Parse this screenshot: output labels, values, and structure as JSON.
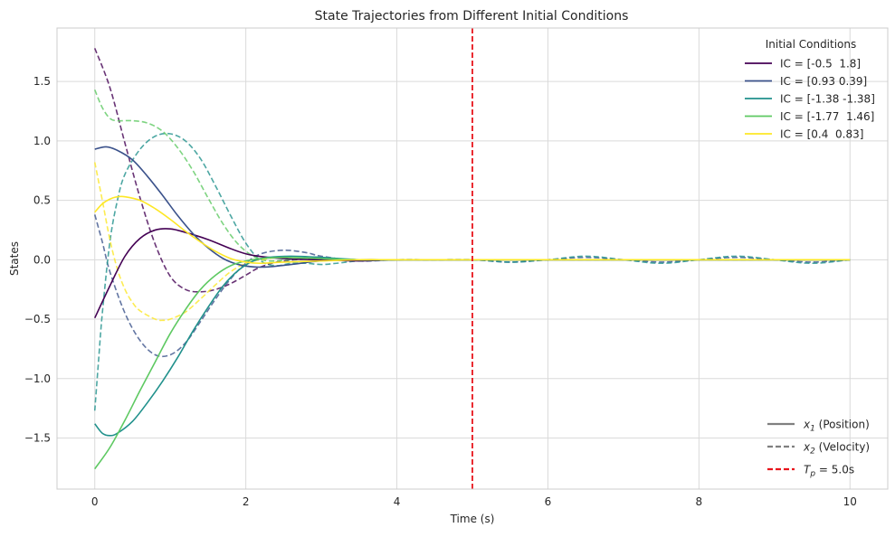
{
  "chart_data": {
    "type": "line",
    "title": "State Trajectories from Different Initial Conditions",
    "xlabel": "Time (s)",
    "ylabel": "States",
    "xlim": [
      -0.5,
      10.5
    ],
    "ylim": [
      -1.93,
      1.95
    ],
    "x_ticks": [
      0,
      2,
      4,
      6,
      8,
      10
    ],
    "x_tick_labels": [
      "0",
      "2",
      "4",
      "6",
      "8",
      "10"
    ],
    "y_ticks": [
      -1.5,
      -1.0,
      -0.5,
      0.0,
      0.5,
      1.0,
      1.5
    ],
    "y_tick_labels": [
      "−1.5",
      "−1.0",
      "−0.5",
      "0.0",
      "0.5",
      "1.0",
      "1.5"
    ],
    "grid": true,
    "vline": {
      "x": 5.0,
      "color": "#e8141c"
    },
    "legend_ic": {
      "title": "Initial Conditions",
      "placement": "top-right",
      "entries": [
        {
          "label": "IC = [-0.5  1.8]",
          "color": "#440154"
        },
        {
          "label": "IC = [0.93 0.39]",
          "color": "#3b528b"
        },
        {
          "label": "IC = [-1.38 -1.38]",
          "color": "#21918c"
        },
        {
          "label": "IC = [-1.77  1.46]",
          "color": "#5ec962"
        },
        {
          "label": "IC = [0.4  0.83]",
          "color": "#fde725"
        }
      ]
    },
    "legend_style": {
      "placement": "bottom-right",
      "entries": [
        {
          "prefix": "x",
          "sub": "1",
          "label": " (Position)",
          "style": "solid",
          "color": "#808080"
        },
        {
          "prefix": "x",
          "sub": "2",
          "label": " (Velocity)",
          "style": "dashed",
          "color": "#808080"
        },
        {
          "prefix": "T",
          "sub": "p",
          "label": " = 5.0s",
          "style": "dashed",
          "color": "#e8141c"
        }
      ]
    },
    "series": [
      {
        "name": "IC = [-0.5  1.8] x1",
        "state": "x1",
        "color": "#440154",
        "x": [
          0,
          0.2,
          0.4,
          0.6,
          0.8,
          1.0,
          1.2,
          1.5,
          2.0,
          2.5,
          3.0,
          3.5,
          4.0,
          5.0,
          6.0,
          7.0,
          8.0,
          9.0,
          10.0
        ],
        "y": [
          -0.49,
          -0.22,
          0.03,
          0.18,
          0.25,
          0.26,
          0.23,
          0.17,
          0.05,
          0.01,
          0.0,
          -0.01,
          0.0,
          0.0,
          0.0,
          0.0,
          0.0,
          0.0,
          0.0
        ]
      },
      {
        "name": "IC = [-0.5  1.8] x2",
        "state": "x2",
        "color": "#440154",
        "x": [
          0,
          0.2,
          0.4,
          0.6,
          0.8,
          1.0,
          1.2,
          1.4,
          1.6,
          1.8,
          2.0,
          2.2,
          2.5,
          3.0,
          3.5,
          4.0,
          5.0,
          6.0,
          7.0,
          8.0,
          9.0,
          10.0
        ],
        "y": [
          1.78,
          1.45,
          0.98,
          0.52,
          0.13,
          -0.14,
          -0.25,
          -0.27,
          -0.25,
          -0.2,
          -0.13,
          -0.06,
          -0.01,
          0.01,
          0.0,
          0.0,
          0.0,
          0.0,
          0.0,
          0.0,
          0.0,
          0.0
        ]
      },
      {
        "name": "IC = [0.93 0.39] x1",
        "state": "x1",
        "color": "#3b528b",
        "x": [
          0,
          0.15,
          0.3,
          0.5,
          0.7,
          0.9,
          1.1,
          1.3,
          1.5,
          1.7,
          1.9,
          2.1,
          2.3,
          2.6,
          3.0,
          3.5,
          4.0,
          5.0,
          6.0,
          7.0,
          8.0,
          9.0,
          10.0
        ],
        "y": [
          0.93,
          0.95,
          0.92,
          0.84,
          0.7,
          0.54,
          0.37,
          0.22,
          0.1,
          0.01,
          -0.04,
          -0.06,
          -0.06,
          -0.04,
          -0.01,
          0.0,
          0.0,
          0.0,
          0.0,
          0.0,
          0.0,
          0.0,
          0.0
        ]
      },
      {
        "name": "IC = [0.93 0.39] x2",
        "state": "x2",
        "color": "#3b528b",
        "x": [
          0,
          0.1,
          0.2,
          0.4,
          0.6,
          0.8,
          1.0,
          1.2,
          1.4,
          1.6,
          1.8,
          2.0,
          2.2,
          2.5,
          2.8,
          3.0,
          3.5,
          4.0,
          4.5,
          5.0,
          5.5,
          6.0,
          6.5,
          7.0,
          7.5,
          8.0,
          8.5,
          9.0,
          9.5,
          10.0
        ],
        "y": [
          0.38,
          0.15,
          -0.1,
          -0.45,
          -0.68,
          -0.8,
          -0.8,
          -0.7,
          -0.52,
          -0.33,
          -0.16,
          -0.03,
          0.05,
          0.08,
          0.06,
          0.03,
          -0.01,
          0.0,
          0.0,
          0.0,
          -0.02,
          0.0,
          0.02,
          0.0,
          -0.02,
          0.0,
          0.02,
          0.0,
          -0.02,
          0.0
        ]
      },
      {
        "name": "IC = [-1.38 -1.38] x1",
        "state": "x1",
        "color": "#21918c",
        "x": [
          0,
          0.1,
          0.2,
          0.3,
          0.5,
          0.7,
          0.9,
          1.1,
          1.3,
          1.5,
          1.7,
          1.9,
          2.1,
          2.3,
          2.6,
          3.0,
          3.5,
          4.0,
          5.0,
          6.0,
          7.0,
          8.0,
          9.0,
          10.0
        ],
        "y": [
          -1.38,
          -1.46,
          -1.48,
          -1.46,
          -1.36,
          -1.2,
          -1.02,
          -0.82,
          -0.6,
          -0.4,
          -0.22,
          -0.09,
          -0.01,
          0.02,
          0.03,
          0.02,
          0.0,
          0.0,
          0.0,
          0.0,
          0.0,
          0.0,
          0.0,
          0.0
        ]
      },
      {
        "name": "IC = [-1.38 -1.38] x2",
        "state": "x2",
        "color": "#21918c",
        "x": [
          0,
          0.05,
          0.1,
          0.2,
          0.3,
          0.4,
          0.6,
          0.8,
          1.0,
          1.2,
          1.4,
          1.6,
          1.8,
          2.0,
          2.2,
          2.4,
          2.6,
          2.8,
          3.0,
          3.2,
          3.5,
          4.0,
          4.5,
          5.0,
          5.5,
          6.0,
          6.5,
          7.0,
          7.5,
          8.0,
          8.5,
          9.0,
          9.5,
          10.0
        ],
        "y": [
          -1.27,
          -0.85,
          -0.45,
          0.15,
          0.5,
          0.72,
          0.93,
          1.04,
          1.06,
          1.0,
          0.85,
          0.62,
          0.37,
          0.14,
          -0.01,
          -0.05,
          -0.03,
          -0.03,
          -0.04,
          -0.03,
          -0.01,
          0.0,
          0.0,
          0.0,
          -0.02,
          0.0,
          0.03,
          0.0,
          -0.03,
          0.0,
          0.03,
          0.0,
          -0.03,
          0.0
        ]
      },
      {
        "name": "IC = [-1.77  1.46] x1",
        "state": "x1",
        "color": "#5ec962",
        "x": [
          0,
          0.2,
          0.4,
          0.6,
          0.8,
          1.0,
          1.2,
          1.4,
          1.6,
          1.8,
          2.0,
          2.2,
          2.5,
          3.0,
          3.5,
          4.0,
          5.0,
          6.0,
          7.0,
          8.0,
          9.0,
          10.0
        ],
        "y": [
          -1.76,
          -1.58,
          -1.35,
          -1.1,
          -0.86,
          -0.62,
          -0.42,
          -0.25,
          -0.13,
          -0.05,
          -0.01,
          0.01,
          0.02,
          0.01,
          0.0,
          0.0,
          0.0,
          0.0,
          0.0,
          0.0,
          0.0,
          0.0
        ]
      },
      {
        "name": "IC = [-1.77  1.46] x2",
        "state": "x2",
        "color": "#5ec962",
        "x": [
          0,
          0.1,
          0.2,
          0.3,
          0.5,
          0.7,
          0.9,
          1.1,
          1.3,
          1.5,
          1.7,
          1.9,
          2.1,
          2.3,
          2.6,
          3.0,
          3.5,
          4.0,
          5.0,
          6.0,
          7.0,
          8.0,
          9.0,
          10.0
        ],
        "y": [
          1.43,
          1.28,
          1.19,
          1.17,
          1.17,
          1.15,
          1.08,
          0.94,
          0.75,
          0.52,
          0.3,
          0.13,
          0.03,
          -0.01,
          0.0,
          0.01,
          0.0,
          0.0,
          0.0,
          0.0,
          0.0,
          0.0,
          0.0,
          0.0
        ]
      },
      {
        "name": "IC = [0.4  0.83] x1",
        "state": "x1",
        "color": "#fde725",
        "x": [
          0,
          0.1,
          0.2,
          0.3,
          0.4,
          0.6,
          0.8,
          1.0,
          1.2,
          1.4,
          1.6,
          1.8,
          2.0,
          2.2,
          2.5,
          3.0,
          3.5,
          4.0,
          5.0,
          6.0,
          7.0,
          8.0,
          9.0,
          10.0
        ],
        "y": [
          0.4,
          0.47,
          0.51,
          0.53,
          0.53,
          0.5,
          0.43,
          0.34,
          0.24,
          0.15,
          0.07,
          0.01,
          -0.02,
          -0.03,
          -0.02,
          -0.01,
          0.0,
          0.0,
          0.0,
          0.0,
          0.0,
          0.0,
          0.0,
          0.0
        ]
      },
      {
        "name": "IC = [0.4  0.83] x2",
        "state": "x2",
        "color": "#fde725",
        "x": [
          0,
          0.1,
          0.2,
          0.3,
          0.4,
          0.5,
          0.6,
          0.8,
          0.9,
          1.0,
          1.2,
          1.4,
          1.6,
          1.8,
          2.0,
          2.2,
          2.5,
          3.0,
          3.5,
          4.0,
          5.0,
          6.0,
          7.0,
          8.0,
          9.0,
          10.0
        ],
        "y": [
          0.82,
          0.5,
          0.17,
          -0.08,
          -0.25,
          -0.36,
          -0.43,
          -0.5,
          -0.51,
          -0.5,
          -0.44,
          -0.33,
          -0.21,
          -0.1,
          -0.03,
          0.0,
          0.02,
          0.01,
          0.0,
          0.0,
          0.0,
          0.0,
          0.0,
          0.0,
          0.0,
          0.0
        ]
      }
    ]
  }
}
